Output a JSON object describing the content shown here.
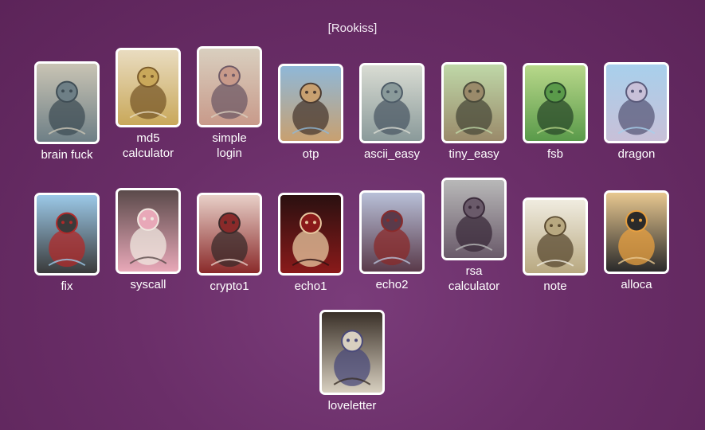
{
  "section": {
    "title": "[Rookiss]"
  },
  "challenges": [
    {
      "label": "brain fuck",
      "icon": "zombie-drinking-icon",
      "colors": [
        "#c9c4b4",
        "#6e7f86",
        "#3f4d55"
      ]
    },
    {
      "label": "md5\ncalculator",
      "icon": "golden-throne-icon",
      "colors": [
        "#e9dcc0",
        "#c9a85a",
        "#7a5a2a"
      ]
    },
    {
      "label": "simple\nlogin",
      "icon": "snail-girl-icon",
      "colors": [
        "#d9cfbf",
        "#c89a8a",
        "#6f5a66"
      ]
    },
    {
      "label": "otp",
      "icon": "eye-creature-icon",
      "colors": [
        "#8fb8d8",
        "#c8a070",
        "#4a3a30"
      ]
    },
    {
      "label": "ascii_easy",
      "icon": "centaur-icon",
      "colors": [
        "#d9dcd3",
        "#8a9a9a",
        "#4c5a66"
      ]
    },
    {
      "label": "tiny_easy",
      "icon": "fly-creature-icon",
      "colors": [
        "#bfd8a8",
        "#9a8a6a",
        "#4a4a3a"
      ]
    },
    {
      "label": "fsb",
      "icon": "snake-icon",
      "colors": [
        "#b8d88a",
        "#5a9a4a",
        "#2a4a2a"
      ]
    },
    {
      "label": "dragon",
      "icon": "dragon-icon",
      "colors": [
        "#a8d0ec",
        "#c8c0d8",
        "#5a5a7a"
      ]
    },
    {
      "label": "fix",
      "icon": "cat-knight-icon",
      "colors": [
        "#9cc9e8",
        "#3a3a3a",
        "#b02a2a"
      ]
    },
    {
      "label": "syscall",
      "icon": "dancer-girl-icon",
      "colors": [
        "#5a4a4a",
        "#e8a8b8",
        "#f0e8e0"
      ]
    },
    {
      "label": "crypto1",
      "icon": "priest-girl-icon",
      "colors": [
        "#e8d0c8",
        "#8a2a2a",
        "#3a2a2a"
      ]
    },
    {
      "label": "echo1",
      "icon": "winged-demon-icon",
      "colors": [
        "#2a1010",
        "#8a1a1a",
        "#e8c8a0"
      ]
    },
    {
      "label": "echo2",
      "icon": "horned-girl-icon",
      "colors": [
        "#b8c0d8",
        "#5a3a4a",
        "#8a2a2a"
      ]
    },
    {
      "label": "rsa\ncalculator",
      "icon": "book-monster-icon",
      "colors": [
        "#b8b8b8",
        "#6a5a6a",
        "#3a2a3a"
      ]
    },
    {
      "label": "note",
      "icon": "paper-monster-icon",
      "colors": [
        "#f0ece0",
        "#b8a880",
        "#5a4a30"
      ]
    },
    {
      "label": "alloca",
      "icon": "penguin-icon",
      "colors": [
        "#e8c890",
        "#2a2a2a",
        "#e8a040"
      ]
    },
    {
      "label": "loveletter",
      "icon": "skeleton-prisoner-icon",
      "colors": [
        "#3a3028",
        "#d8d0c0",
        "#4a4a7a"
      ]
    }
  ]
}
